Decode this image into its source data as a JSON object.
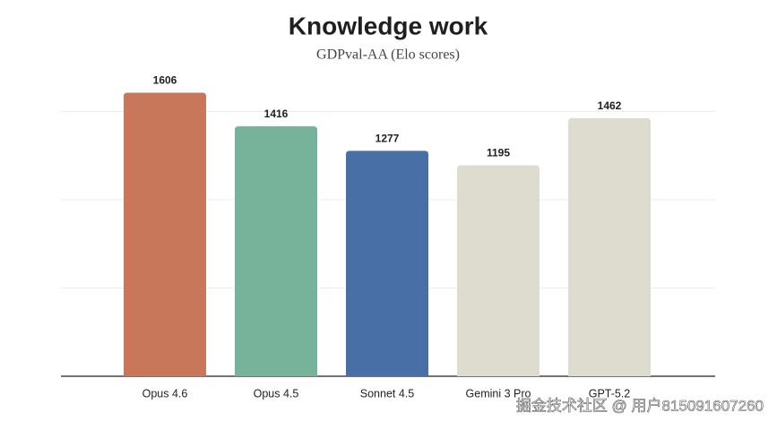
{
  "chart_data": {
    "type": "bar",
    "title": "Knowledge work",
    "subtitle": "GDPval-AA (Elo scores)",
    "categories": [
      "Opus 4.6",
      "Opus 4.5",
      "Sonnet 4.5",
      "Gemini 3 Pro",
      "GPT-5.2"
    ],
    "values": [
      1606,
      1416,
      1277,
      1195,
      1462
    ],
    "colors": [
      "#c8775a",
      "#77b39a",
      "#4870a6",
      "#dedbcf",
      "#dedbcf"
    ],
    "ylim": [
      0,
      1700
    ],
    "yticks": [
      0,
      500,
      1000,
      1500
    ],
    "grid": true
  },
  "watermark": "掘金技术社区 @ 用户815091607260"
}
